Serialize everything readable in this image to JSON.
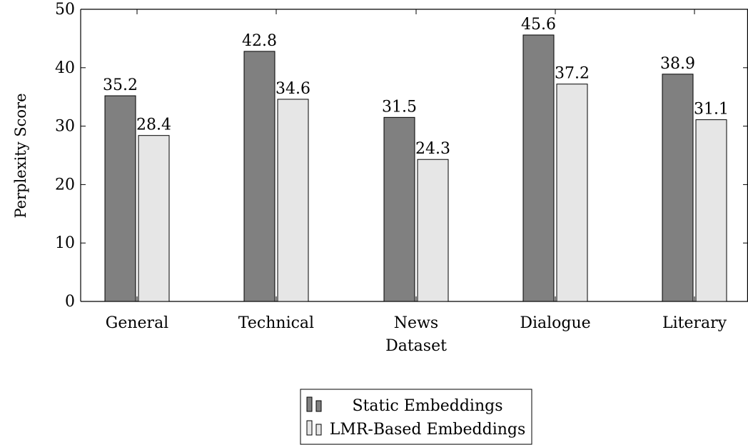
{
  "chart_data": {
    "type": "bar",
    "title": "",
    "xlabel": "Dataset",
    "ylabel": "Perplexity Score",
    "ylim": [
      0,
      50
    ],
    "yticks": [
      0,
      10,
      20,
      30,
      40,
      50
    ],
    "categories": [
      "General",
      "Technical",
      "News",
      "Dialogue",
      "Literary"
    ],
    "series": [
      {
        "name": "Static Embeddings",
        "values": [
          35.2,
          42.8,
          31.5,
          45.6,
          38.9
        ],
        "color": "#808080"
      },
      {
        "name": "LMR-Based Embeddings",
        "values": [
          28.4,
          34.6,
          24.3,
          37.2,
          31.1
        ],
        "color": "#e6e6e6"
      }
    ],
    "grid": false,
    "legend_position": "bottom-center"
  }
}
